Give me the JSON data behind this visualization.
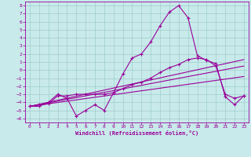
{
  "bg_color": "#c8eaea",
  "grid_color": "#a0cccc",
  "line_color": "#990099",
  "xlabel": "Windchill (Refroidissement éolien,°C)",
  "xlim": [
    -0.5,
    23.5
  ],
  "ylim": [
    -6.5,
    8.5
  ],
  "xticks": [
    0,
    1,
    2,
    3,
    4,
    5,
    6,
    7,
    8,
    9,
    10,
    11,
    12,
    13,
    14,
    15,
    16,
    17,
    18,
    19,
    20,
    21,
    22,
    23
  ],
  "yticks": [
    8,
    7,
    6,
    5,
    4,
    3,
    2,
    1,
    0,
    -1,
    -2,
    -3,
    -4,
    -5,
    -6
  ],
  "series1_x": [
    0,
    1,
    2,
    3,
    4,
    5,
    6,
    7,
    8,
    9,
    10,
    11,
    12,
    13,
    14,
    15,
    16,
    17,
    18,
    19,
    20,
    21,
    22,
    23
  ],
  "series1_y": [
    -4.5,
    -4.5,
    -4.0,
    -3.0,
    -3.5,
    -5.7,
    -5.0,
    -4.3,
    -5.0,
    -2.8,
    -0.5,
    1.5,
    2.0,
    3.5,
    5.5,
    7.2,
    8.0,
    6.5,
    1.8,
    1.2,
    0.8,
    -3.3,
    -4.3,
    -3.2
  ],
  "series2_x": [
    0,
    1,
    2,
    3,
    4,
    5,
    6,
    7,
    8,
    9,
    10,
    11,
    12,
    13,
    14,
    15,
    16,
    17,
    18,
    19,
    20,
    21,
    22,
    23
  ],
  "series2_y": [
    -4.5,
    -4.3,
    -4.2,
    -3.2,
    -3.2,
    -3.0,
    -3.0,
    -3.0,
    -3.0,
    -2.8,
    -2.3,
    -1.8,
    -1.5,
    -1.0,
    -0.3,
    0.3,
    0.7,
    1.3,
    1.5,
    1.3,
    0.5,
    -3.0,
    -3.5,
    -3.2
  ],
  "series3_x": [
    0,
    23
  ],
  "series3_y": [
    -4.5,
    1.3
  ],
  "series4_x": [
    0,
    23
  ],
  "series4_y": [
    -4.5,
    0.5
  ],
  "series5_x": [
    0,
    23
  ],
  "series5_y": [
    -4.5,
    -0.8
  ]
}
